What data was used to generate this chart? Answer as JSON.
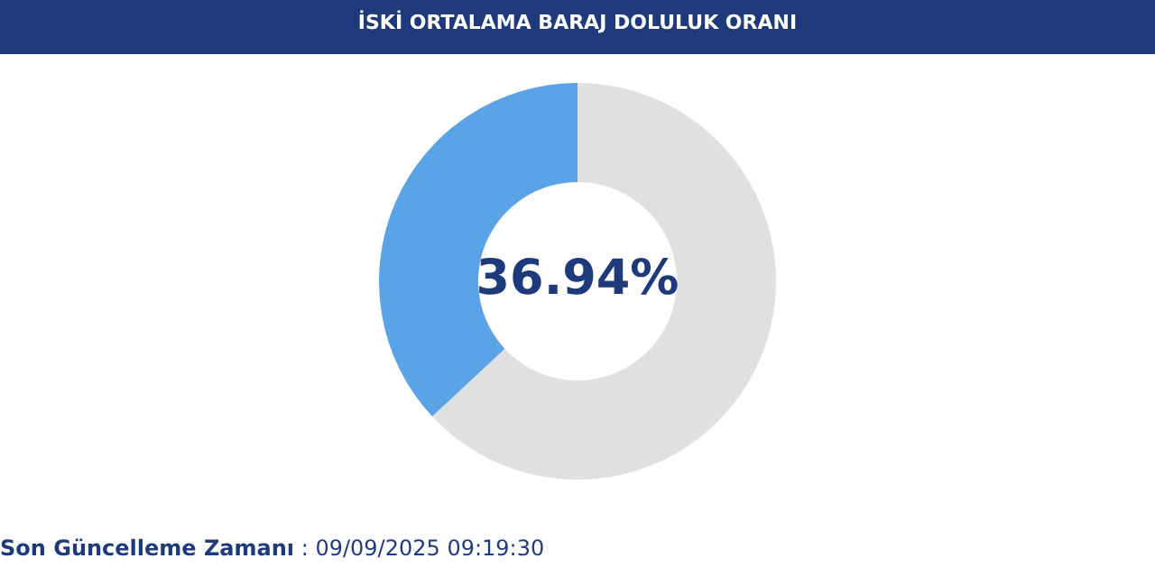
{
  "chart_data": {
    "type": "donut",
    "title": "İSKİ ORTALAMA BARAJ DOLULUK ORANI",
    "categories": [
      null,
      null
    ],
    "values": [
      36.94,
      63.06
    ],
    "colors": [
      "#5aa3e6",
      "#e0e0e0"
    ],
    "legend": false,
    "annotations": [
      "36.94%",
      "Son Güncelleme Zamanı : 09/09/2025 09:19:30"
    ]
  }
}
